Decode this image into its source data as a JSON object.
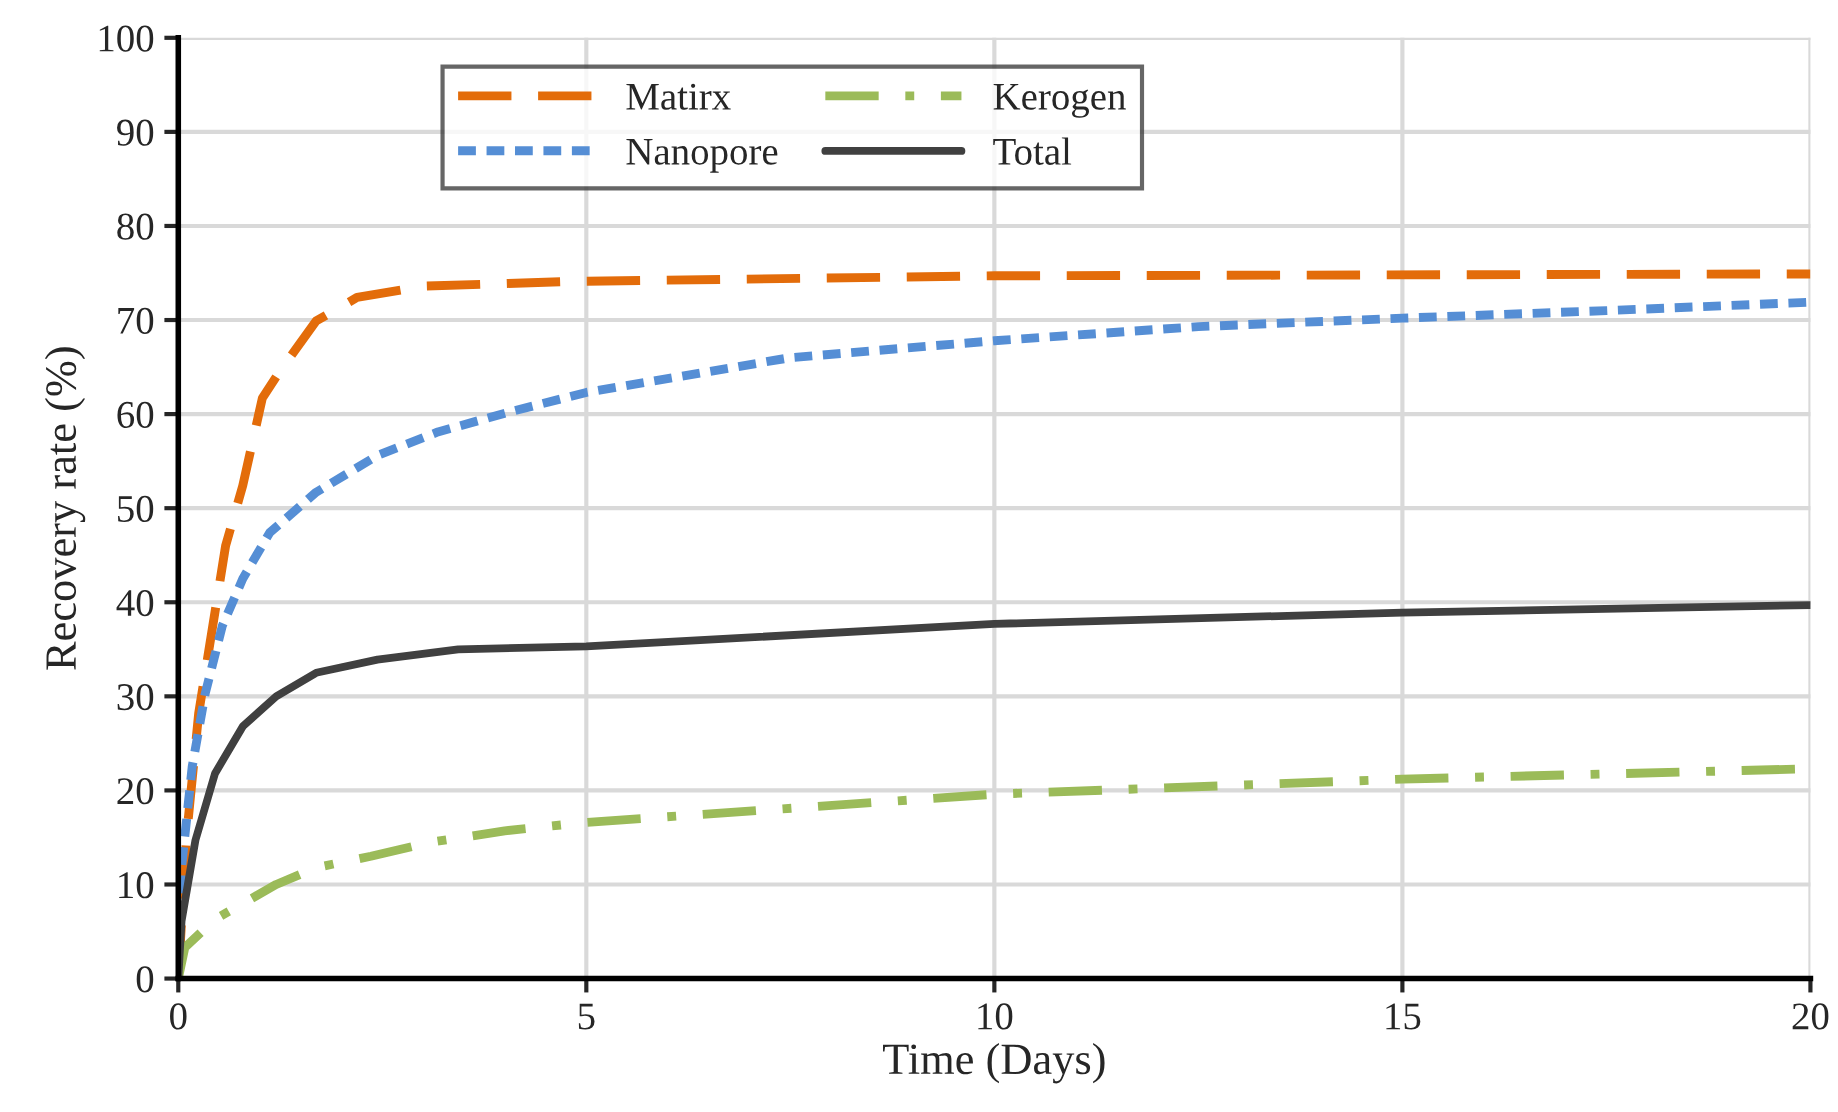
{
  "chart_data": {
    "type": "line",
    "xlabel": "Time (Days)",
    "ylabel": "Recovery rate (%)",
    "xlim": [
      0,
      20
    ],
    "xticks": [
      0,
      5,
      10,
      15,
      20
    ],
    "ylim": [
      0,
      100
    ],
    "yticks": [
      0,
      10,
      20,
      30,
      40,
      50,
      60,
      70,
      80,
      90,
      100
    ],
    "grid": true,
    "legend": "top left",
    "series": [
      {
        "name": "Matirx",
        "color": "#e36c0a",
        "line_style": "dashed",
        "x": [
          0,
          0.1,
          0.25,
          0.58,
          0.79,
          1.03,
          1.24,
          1.69,
          2.19,
          3.0,
          4.8,
          10,
          20
        ],
        "values": [
          0,
          15,
          28.2,
          46,
          52.4,
          61.7,
          64.5,
          69.9,
          72.4,
          73.6,
          74.1,
          74.7,
          74.9
        ]
      },
      {
        "name": "Nanopore",
        "color": "#558ed5",
        "line_style": "dotted",
        "x": [
          0,
          0.04,
          0.17,
          0.33,
          0.54,
          0.79,
          1.12,
          1.69,
          2.44,
          3.18,
          4.09,
          5,
          7.5,
          10,
          12.5,
          15,
          17.5,
          20
        ],
        "values": [
          0,
          11.8,
          22.5,
          30.3,
          37.5,
          42.5,
          47.4,
          51.7,
          55.6,
          58.1,
          60.3,
          62.3,
          66.0,
          67.8,
          69.3,
          70.2,
          71.0,
          71.9
        ]
      },
      {
        "name": "Kerogen",
        "color": "#9bbb59",
        "line_style": "dashdot",
        "x": [
          0,
          0.08,
          0.45,
          1.2,
          1.69,
          2.36,
          3.1,
          4.0,
          5,
          10,
          15,
          20
        ],
        "values": [
          0,
          3.3,
          6.3,
          10,
          11.8,
          13,
          14.5,
          15.7,
          16.6,
          19.6,
          21.2,
          22.3
        ]
      },
      {
        "name": "Total",
        "color": "#404040",
        "line_style": "solid",
        "x": [
          0,
          0.04,
          0.21,
          0.45,
          0.79,
          1.2,
          1.69,
          2.44,
          3.43,
          5,
          10,
          15,
          20
        ],
        "values": [
          0,
          6.1,
          14.7,
          21.8,
          26.8,
          30,
          32.5,
          33.9,
          35,
          35.3,
          37.7,
          38.9,
          39.7
        ]
      }
    ]
  }
}
